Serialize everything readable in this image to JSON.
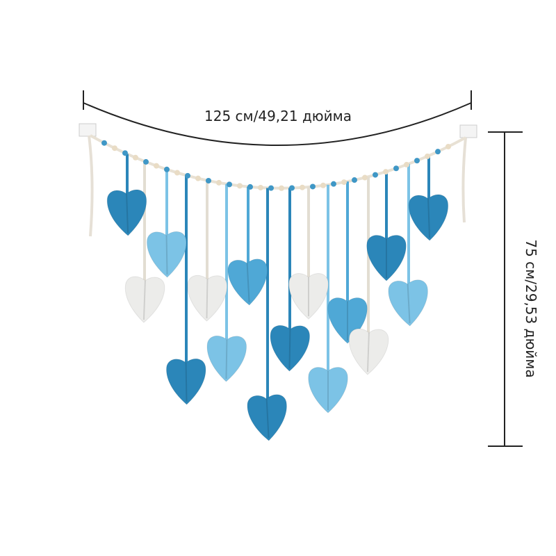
{
  "labels": {
    "width": "125 см/49,21 дюйма",
    "height": "75 см/29,53 дюйма"
  }
}
